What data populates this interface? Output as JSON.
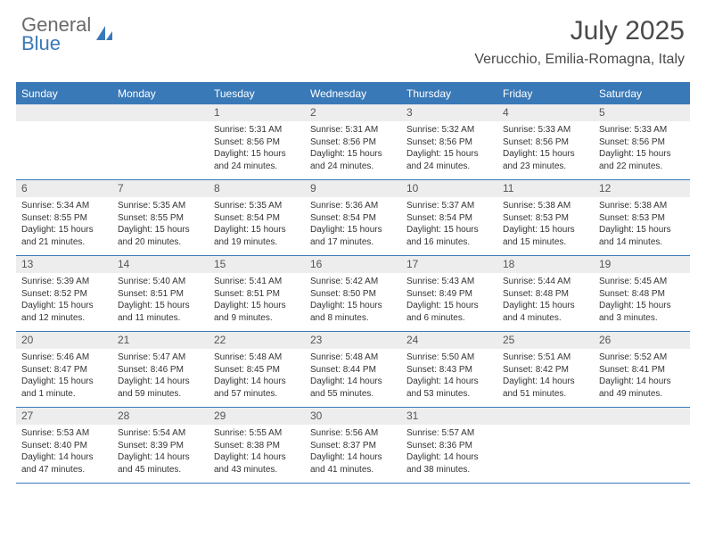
{
  "logo": {
    "top": "General",
    "bottom": "Blue"
  },
  "title": "July 2025",
  "location": "Verucchio, Emilia-Romagna, Italy",
  "colors": {
    "accent": "#3a79b7",
    "header_bg": "#3a79b7",
    "daynum_bg": "#ededed",
    "text": "#333333",
    "title_text": "#4a4a4a",
    "logo_gray": "#6a6a6a"
  },
  "weekdays": [
    "Sunday",
    "Monday",
    "Tuesday",
    "Wednesday",
    "Thursday",
    "Friday",
    "Saturday"
  ],
  "weeks": [
    [
      {
        "n": "",
        "sunrise": "",
        "sunset": "",
        "daylight": ""
      },
      {
        "n": "",
        "sunrise": "",
        "sunset": "",
        "daylight": ""
      },
      {
        "n": "1",
        "sunrise": "Sunrise: 5:31 AM",
        "sunset": "Sunset: 8:56 PM",
        "daylight": "Daylight: 15 hours and 24 minutes."
      },
      {
        "n": "2",
        "sunrise": "Sunrise: 5:31 AM",
        "sunset": "Sunset: 8:56 PM",
        "daylight": "Daylight: 15 hours and 24 minutes."
      },
      {
        "n": "3",
        "sunrise": "Sunrise: 5:32 AM",
        "sunset": "Sunset: 8:56 PM",
        "daylight": "Daylight: 15 hours and 24 minutes."
      },
      {
        "n": "4",
        "sunrise": "Sunrise: 5:33 AM",
        "sunset": "Sunset: 8:56 PM",
        "daylight": "Daylight: 15 hours and 23 minutes."
      },
      {
        "n": "5",
        "sunrise": "Sunrise: 5:33 AM",
        "sunset": "Sunset: 8:56 PM",
        "daylight": "Daylight: 15 hours and 22 minutes."
      }
    ],
    [
      {
        "n": "6",
        "sunrise": "Sunrise: 5:34 AM",
        "sunset": "Sunset: 8:55 PM",
        "daylight": "Daylight: 15 hours and 21 minutes."
      },
      {
        "n": "7",
        "sunrise": "Sunrise: 5:35 AM",
        "sunset": "Sunset: 8:55 PM",
        "daylight": "Daylight: 15 hours and 20 minutes."
      },
      {
        "n": "8",
        "sunrise": "Sunrise: 5:35 AM",
        "sunset": "Sunset: 8:54 PM",
        "daylight": "Daylight: 15 hours and 19 minutes."
      },
      {
        "n": "9",
        "sunrise": "Sunrise: 5:36 AM",
        "sunset": "Sunset: 8:54 PM",
        "daylight": "Daylight: 15 hours and 17 minutes."
      },
      {
        "n": "10",
        "sunrise": "Sunrise: 5:37 AM",
        "sunset": "Sunset: 8:54 PM",
        "daylight": "Daylight: 15 hours and 16 minutes."
      },
      {
        "n": "11",
        "sunrise": "Sunrise: 5:38 AM",
        "sunset": "Sunset: 8:53 PM",
        "daylight": "Daylight: 15 hours and 15 minutes."
      },
      {
        "n": "12",
        "sunrise": "Sunrise: 5:38 AM",
        "sunset": "Sunset: 8:53 PM",
        "daylight": "Daylight: 15 hours and 14 minutes."
      }
    ],
    [
      {
        "n": "13",
        "sunrise": "Sunrise: 5:39 AM",
        "sunset": "Sunset: 8:52 PM",
        "daylight": "Daylight: 15 hours and 12 minutes."
      },
      {
        "n": "14",
        "sunrise": "Sunrise: 5:40 AM",
        "sunset": "Sunset: 8:51 PM",
        "daylight": "Daylight: 15 hours and 11 minutes."
      },
      {
        "n": "15",
        "sunrise": "Sunrise: 5:41 AM",
        "sunset": "Sunset: 8:51 PM",
        "daylight": "Daylight: 15 hours and 9 minutes."
      },
      {
        "n": "16",
        "sunrise": "Sunrise: 5:42 AM",
        "sunset": "Sunset: 8:50 PM",
        "daylight": "Daylight: 15 hours and 8 minutes."
      },
      {
        "n": "17",
        "sunrise": "Sunrise: 5:43 AM",
        "sunset": "Sunset: 8:49 PM",
        "daylight": "Daylight: 15 hours and 6 minutes."
      },
      {
        "n": "18",
        "sunrise": "Sunrise: 5:44 AM",
        "sunset": "Sunset: 8:48 PM",
        "daylight": "Daylight: 15 hours and 4 minutes."
      },
      {
        "n": "19",
        "sunrise": "Sunrise: 5:45 AM",
        "sunset": "Sunset: 8:48 PM",
        "daylight": "Daylight: 15 hours and 3 minutes."
      }
    ],
    [
      {
        "n": "20",
        "sunrise": "Sunrise: 5:46 AM",
        "sunset": "Sunset: 8:47 PM",
        "daylight": "Daylight: 15 hours and 1 minute."
      },
      {
        "n": "21",
        "sunrise": "Sunrise: 5:47 AM",
        "sunset": "Sunset: 8:46 PM",
        "daylight": "Daylight: 14 hours and 59 minutes."
      },
      {
        "n": "22",
        "sunrise": "Sunrise: 5:48 AM",
        "sunset": "Sunset: 8:45 PM",
        "daylight": "Daylight: 14 hours and 57 minutes."
      },
      {
        "n": "23",
        "sunrise": "Sunrise: 5:48 AM",
        "sunset": "Sunset: 8:44 PM",
        "daylight": "Daylight: 14 hours and 55 minutes."
      },
      {
        "n": "24",
        "sunrise": "Sunrise: 5:50 AM",
        "sunset": "Sunset: 8:43 PM",
        "daylight": "Daylight: 14 hours and 53 minutes."
      },
      {
        "n": "25",
        "sunrise": "Sunrise: 5:51 AM",
        "sunset": "Sunset: 8:42 PM",
        "daylight": "Daylight: 14 hours and 51 minutes."
      },
      {
        "n": "26",
        "sunrise": "Sunrise: 5:52 AM",
        "sunset": "Sunset: 8:41 PM",
        "daylight": "Daylight: 14 hours and 49 minutes."
      }
    ],
    [
      {
        "n": "27",
        "sunrise": "Sunrise: 5:53 AM",
        "sunset": "Sunset: 8:40 PM",
        "daylight": "Daylight: 14 hours and 47 minutes."
      },
      {
        "n": "28",
        "sunrise": "Sunrise: 5:54 AM",
        "sunset": "Sunset: 8:39 PM",
        "daylight": "Daylight: 14 hours and 45 minutes."
      },
      {
        "n": "29",
        "sunrise": "Sunrise: 5:55 AM",
        "sunset": "Sunset: 8:38 PM",
        "daylight": "Daylight: 14 hours and 43 minutes."
      },
      {
        "n": "30",
        "sunrise": "Sunrise: 5:56 AM",
        "sunset": "Sunset: 8:37 PM",
        "daylight": "Daylight: 14 hours and 41 minutes."
      },
      {
        "n": "31",
        "sunrise": "Sunrise: 5:57 AM",
        "sunset": "Sunset: 8:36 PM",
        "daylight": "Daylight: 14 hours and 38 minutes."
      },
      {
        "n": "",
        "sunrise": "",
        "sunset": "",
        "daylight": ""
      },
      {
        "n": "",
        "sunrise": "",
        "sunset": "",
        "daylight": ""
      }
    ]
  ]
}
